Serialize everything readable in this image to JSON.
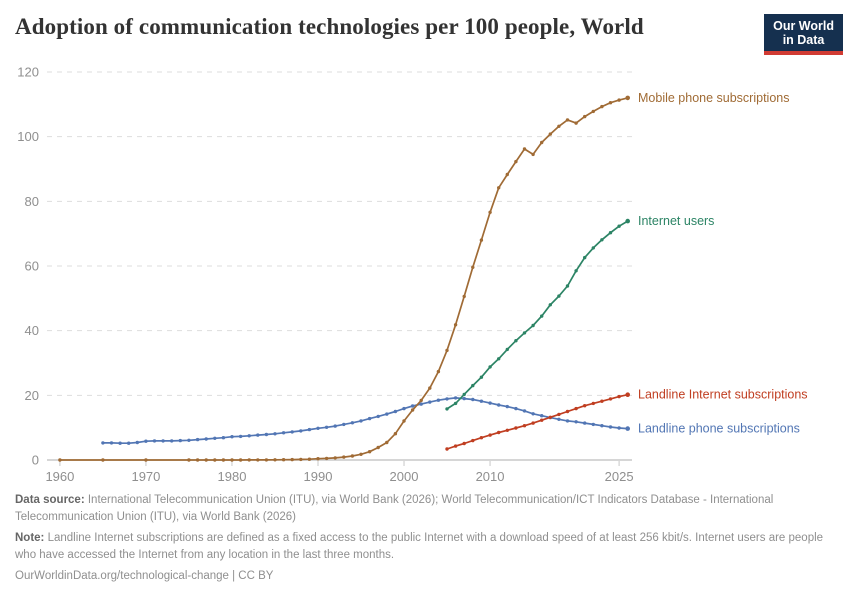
{
  "header": {
    "title": "Adoption of communication technologies per 100 people, World",
    "logo": {
      "line1": "Our World",
      "line2": "in Data"
    }
  },
  "chart_data": {
    "type": "line",
    "title": "Adoption of communication technologies per 100 people, World",
    "xlabel": "",
    "ylabel": "",
    "xlim": [
      1958.5,
      2026.5
    ],
    "ylim": [
      0,
      120
    ],
    "x_ticks": [
      1960,
      1970,
      1980,
      1990,
      2000,
      2010,
      2025
    ],
    "y_ticks": [
      0,
      20,
      40,
      60,
      80,
      100,
      120
    ],
    "grid": "dashed-horizontal",
    "legend_position": "end-of-line-labels",
    "series": [
      {
        "name": "Landline phone subscriptions",
        "color": "#5276B4",
        "points": [
          [
            1965,
            5.3
          ],
          [
            1966,
            5.3
          ],
          [
            1967,
            5.2
          ],
          [
            1968,
            5.2
          ],
          [
            1969,
            5.4
          ],
          [
            1970,
            5.8
          ],
          [
            1971,
            5.9
          ],
          [
            1972,
            5.9
          ],
          [
            1973,
            5.9
          ],
          [
            1974,
            6.0
          ],
          [
            1975,
            6.1
          ],
          [
            1976,
            6.3
          ],
          [
            1977,
            6.5
          ],
          [
            1978,
            6.7
          ],
          [
            1979,
            6.9
          ],
          [
            1980,
            7.2
          ],
          [
            1981,
            7.3
          ],
          [
            1982,
            7.5
          ],
          [
            1983,
            7.7
          ],
          [
            1984,
            7.9
          ],
          [
            1985,
            8.1
          ],
          [
            1986,
            8.4
          ],
          [
            1987,
            8.7
          ],
          [
            1988,
            9.0
          ],
          [
            1989,
            9.4
          ],
          [
            1990,
            9.8
          ],
          [
            1991,
            10.1
          ],
          [
            1992,
            10.5
          ],
          [
            1993,
            11.0
          ],
          [
            1994,
            11.5
          ],
          [
            1995,
            12.1
          ],
          [
            1996,
            12.8
          ],
          [
            1997,
            13.5
          ],
          [
            1998,
            14.2
          ],
          [
            1999,
            15.0
          ],
          [
            2000,
            15.9
          ],
          [
            2001,
            16.7
          ],
          [
            2002,
            17.3
          ],
          [
            2003,
            17.9
          ],
          [
            2004,
            18.5
          ],
          [
            2005,
            18.9
          ],
          [
            2006,
            19.2
          ],
          [
            2007,
            19.0
          ],
          [
            2008,
            18.7
          ],
          [
            2009,
            18.2
          ],
          [
            2010,
            17.6
          ],
          [
            2011,
            17.0
          ],
          [
            2012,
            16.5
          ],
          [
            2013,
            15.9
          ],
          [
            2014,
            15.2
          ],
          [
            2015,
            14.3
          ],
          [
            2016,
            13.7
          ],
          [
            2017,
            13.1
          ],
          [
            2018,
            12.6
          ],
          [
            2019,
            12.1
          ],
          [
            2020,
            11.8
          ],
          [
            2021,
            11.4
          ],
          [
            2022,
            11.0
          ],
          [
            2023,
            10.6
          ],
          [
            2024,
            10.2
          ],
          [
            2025,
            9.9
          ],
          [
            2026,
            9.7
          ]
        ]
      },
      {
        "name": "Mobile phone subscriptions",
        "color": "#A06B35",
        "points": [
          [
            1960,
            0
          ],
          [
            1965,
            0
          ],
          [
            1970,
            0
          ],
          [
            1975,
            0
          ],
          [
            1976,
            0
          ],
          [
            1977,
            0
          ],
          [
            1978,
            0
          ],
          [
            1979,
            0
          ],
          [
            1980,
            0.01
          ],
          [
            1981,
            0.01
          ],
          [
            1982,
            0.02
          ],
          [
            1983,
            0.03
          ],
          [
            1984,
            0.04
          ],
          [
            1985,
            0.06
          ],
          [
            1986,
            0.09
          ],
          [
            1987,
            0.13
          ],
          [
            1988,
            0.19
          ],
          [
            1989,
            0.26
          ],
          [
            1990,
            0.41
          ],
          [
            1991,
            0.51
          ],
          [
            1992,
            0.66
          ],
          [
            1993,
            0.89
          ],
          [
            1994,
            1.24
          ],
          [
            1995,
            1.76
          ],
          [
            1996,
            2.58
          ],
          [
            1997,
            3.87
          ],
          [
            1998,
            5.42
          ],
          [
            1999,
            8.14
          ],
          [
            2000,
            12.05
          ],
          [
            2001,
            15.46
          ],
          [
            2002,
            18.42
          ],
          [
            2003,
            22.25
          ],
          [
            2004,
            27.35
          ],
          [
            2005,
            33.9
          ],
          [
            2006,
            41.8
          ],
          [
            2007,
            50.6
          ],
          [
            2008,
            59.6
          ],
          [
            2009,
            68.0
          ],
          [
            2010,
            76.6
          ],
          [
            2011,
            84.2
          ],
          [
            2012,
            88.3
          ],
          [
            2013,
            92.3
          ],
          [
            2014,
            96.2
          ],
          [
            2015,
            94.5
          ],
          [
            2016,
            98.2
          ],
          [
            2017,
            100.8
          ],
          [
            2018,
            103.2
          ],
          [
            2019,
            105.2
          ],
          [
            2020,
            104.2
          ],
          [
            2021,
            106.2
          ],
          [
            2022,
            107.8
          ],
          [
            2023,
            109.3
          ],
          [
            2024,
            110.5
          ],
          [
            2025,
            111.3
          ],
          [
            2026,
            112.0
          ]
        ]
      },
      {
        "name": "Internet users",
        "color": "#2C8465",
        "points": [
          [
            2005,
            15.8
          ],
          [
            2006,
            17.5
          ],
          [
            2007,
            20.3
          ],
          [
            2008,
            23.0
          ],
          [
            2009,
            25.6
          ],
          [
            2010,
            28.8
          ],
          [
            2011,
            31.3
          ],
          [
            2012,
            34.2
          ],
          [
            2013,
            36.9
          ],
          [
            2014,
            39.3
          ],
          [
            2015,
            41.6
          ],
          [
            2016,
            44.5
          ],
          [
            2017,
            48.0
          ],
          [
            2018,
            50.7
          ],
          [
            2019,
            53.8
          ],
          [
            2020,
            58.5
          ],
          [
            2021,
            62.6
          ],
          [
            2022,
            65.6
          ],
          [
            2023,
            68.1
          ],
          [
            2024,
            70.3
          ],
          [
            2025,
            72.3
          ],
          [
            2026,
            73.9
          ]
        ]
      },
      {
        "name": "Landline Internet subscriptions",
        "color": "#C03E21",
        "points": [
          [
            2005,
            3.4
          ],
          [
            2006,
            4.3
          ],
          [
            2007,
            5.1
          ],
          [
            2008,
            6.0
          ],
          [
            2009,
            6.9
          ],
          [
            2010,
            7.7
          ],
          [
            2011,
            8.5
          ],
          [
            2012,
            9.2
          ],
          [
            2013,
            9.9
          ],
          [
            2014,
            10.6
          ],
          [
            2015,
            11.4
          ],
          [
            2016,
            12.3
          ],
          [
            2017,
            13.2
          ],
          [
            2018,
            14.1
          ],
          [
            2019,
            15.0
          ],
          [
            2020,
            15.9
          ],
          [
            2021,
            16.8
          ],
          [
            2022,
            17.5
          ],
          [
            2023,
            18.2
          ],
          [
            2024,
            18.9
          ],
          [
            2025,
            19.6
          ],
          [
            2026,
            20.2
          ]
        ]
      }
    ]
  },
  "footer": {
    "source_label": "Data source:",
    "source_text": " International Telecommunication Union (ITU), via World Bank (2026); World Telecommunication/ICT Indicators Database - International Telecommunication Union (ITU), via World Bank (2026)",
    "note_label": "Note:",
    "note_text": " Landline Internet subscriptions are defined as a fixed access to the public Internet with a download speed of at least 256 kbit/s. Internet users are people who have accessed the Internet from any location in the last three months.",
    "license": "OurWorldinData.org/technological-change | CC BY"
  }
}
